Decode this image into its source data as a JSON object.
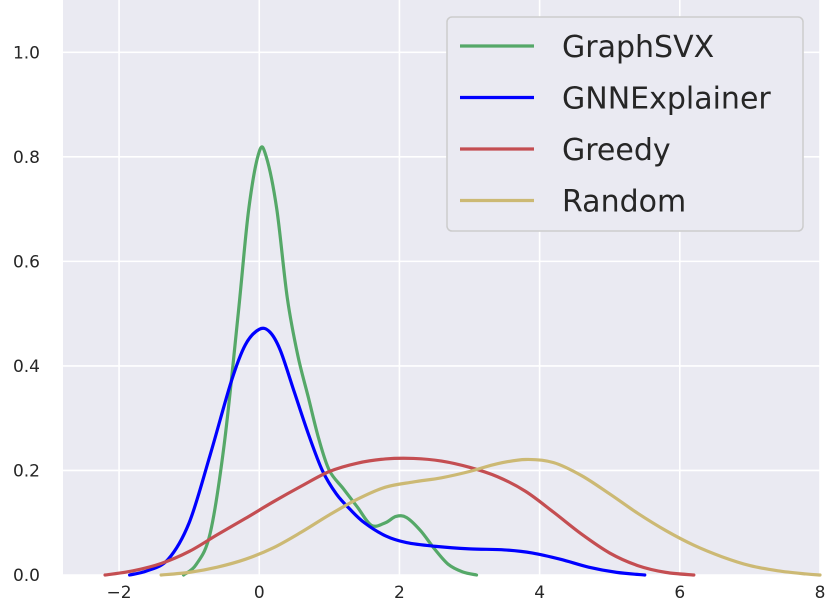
{
  "chart_data": {
    "type": "line",
    "title": "",
    "xlabel": "",
    "ylabel": "",
    "xlim": [
      -2.8,
      8.0
    ],
    "ylim": [
      0.0,
      1.1
    ],
    "x_ticks": [
      -2,
      0,
      2,
      4,
      6,
      8
    ],
    "x_tick_labels": [
      "−2",
      "0",
      "2",
      "4",
      "6",
      "8"
    ],
    "y_ticks": [
      0.0,
      0.2,
      0.4,
      0.6,
      0.8,
      1.0
    ],
    "y_tick_labels": [
      "0.0",
      "0.2",
      "0.4",
      "0.6",
      "0.8",
      "1.0"
    ],
    "grid": true,
    "legend_position": "top-right",
    "series": [
      {
        "name": "GraphSVX",
        "color": "#55a868",
        "points": [
          [
            -1.08,
            0.0
          ],
          [
            -0.9,
            0.02
          ],
          [
            -0.7,
            0.08
          ],
          [
            -0.5,
            0.25
          ],
          [
            -0.3,
            0.5
          ],
          [
            -0.15,
            0.7
          ],
          [
            0.0,
            0.81
          ],
          [
            0.1,
            0.8
          ],
          [
            0.25,
            0.7
          ],
          [
            0.4,
            0.53
          ],
          [
            0.55,
            0.42
          ],
          [
            0.7,
            0.34
          ],
          [
            0.85,
            0.26
          ],
          [
            1.0,
            0.2
          ],
          [
            1.2,
            0.165
          ],
          [
            1.4,
            0.13
          ],
          [
            1.6,
            0.095
          ],
          [
            1.8,
            0.1
          ],
          [
            1.95,
            0.112
          ],
          [
            2.1,
            0.11
          ],
          [
            2.3,
            0.085
          ],
          [
            2.5,
            0.05
          ],
          [
            2.7,
            0.02
          ],
          [
            2.9,
            0.006
          ],
          [
            3.1,
            0.0
          ]
        ]
      },
      {
        "name": "GNNExplainer",
        "color": "#0000ff",
        "points": [
          [
            -1.85,
            0.0
          ],
          [
            -1.6,
            0.008
          ],
          [
            -1.3,
            0.03
          ],
          [
            -1.0,
            0.1
          ],
          [
            -0.7,
            0.23
          ],
          [
            -0.4,
            0.37
          ],
          [
            -0.2,
            0.44
          ],
          [
            0.0,
            0.47
          ],
          [
            0.15,
            0.465
          ],
          [
            0.3,
            0.43
          ],
          [
            0.5,
            0.35
          ],
          [
            0.7,
            0.27
          ],
          [
            0.9,
            0.2
          ],
          [
            1.1,
            0.155
          ],
          [
            1.3,
            0.125
          ],
          [
            1.5,
            0.1
          ],
          [
            1.8,
            0.075
          ],
          [
            2.1,
            0.062
          ],
          [
            2.5,
            0.055
          ],
          [
            3.0,
            0.05
          ],
          [
            3.5,
            0.048
          ],
          [
            3.9,
            0.042
          ],
          [
            4.3,
            0.03
          ],
          [
            4.7,
            0.015
          ],
          [
            5.1,
            0.005
          ],
          [
            5.5,
            0.0
          ]
        ]
      },
      {
        "name": "Greedy",
        "color": "#c44e52",
        "points": [
          [
            -2.2,
            0.0
          ],
          [
            -1.8,
            0.008
          ],
          [
            -1.4,
            0.022
          ],
          [
            -1.0,
            0.045
          ],
          [
            -0.6,
            0.077
          ],
          [
            -0.2,
            0.108
          ],
          [
            0.2,
            0.14
          ],
          [
            0.6,
            0.17
          ],
          [
            1.0,
            0.198
          ],
          [
            1.4,
            0.214
          ],
          [
            1.8,
            0.222
          ],
          [
            2.2,
            0.223
          ],
          [
            2.6,
            0.218
          ],
          [
            3.0,
            0.206
          ],
          [
            3.4,
            0.188
          ],
          [
            3.8,
            0.16
          ],
          [
            4.2,
            0.12
          ],
          [
            4.6,
            0.078
          ],
          [
            5.0,
            0.042
          ],
          [
            5.4,
            0.018
          ],
          [
            5.8,
            0.005
          ],
          [
            6.2,
            0.0
          ]
        ]
      },
      {
        "name": "Random",
        "color": "#ccb974",
        "points": [
          [
            -1.4,
            0.0
          ],
          [
            -1.0,
            0.005
          ],
          [
            -0.6,
            0.015
          ],
          [
            -0.2,
            0.03
          ],
          [
            0.2,
            0.052
          ],
          [
            0.6,
            0.082
          ],
          [
            1.0,
            0.115
          ],
          [
            1.4,
            0.145
          ],
          [
            1.8,
            0.168
          ],
          [
            2.2,
            0.178
          ],
          [
            2.6,
            0.186
          ],
          [
            3.0,
            0.198
          ],
          [
            3.4,
            0.213
          ],
          [
            3.8,
            0.221
          ],
          [
            4.2,
            0.215
          ],
          [
            4.6,
            0.19
          ],
          [
            5.0,
            0.155
          ],
          [
            5.4,
            0.118
          ],
          [
            5.8,
            0.085
          ],
          [
            6.2,
            0.057
          ],
          [
            6.6,
            0.035
          ],
          [
            7.0,
            0.018
          ],
          [
            7.4,
            0.008
          ],
          [
            7.8,
            0.002
          ],
          [
            8.0,
            0.0
          ]
        ]
      }
    ]
  }
}
